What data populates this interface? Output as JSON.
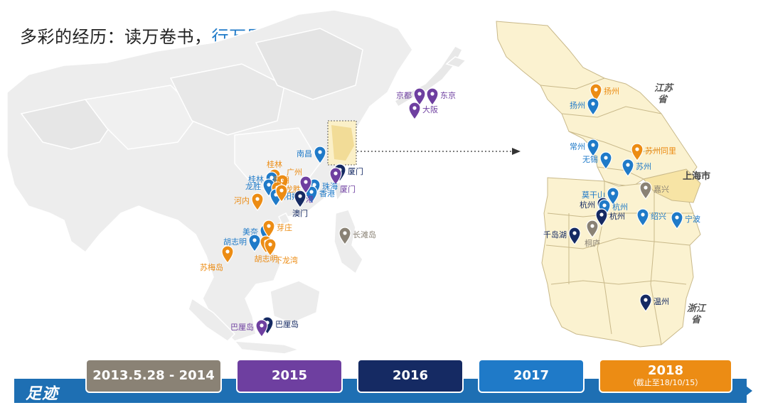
{
  "title": {
    "prefix": "多彩的经历：读万卷书，",
    "accent": "行万里路"
  },
  "colors": {
    "2013-2014": "#8a8275",
    "2015": "#6e3fa0",
    "2016": "#152a63",
    "2017": "#1f7ac8",
    "2018": "#ec8c14",
    "timeline": "#1e6fb3"
  },
  "timeline": {
    "label": "足迹",
    "periods": [
      {
        "label": "2013.5.28 - 2014",
        "sub": "",
        "color": "#8a8275"
      },
      {
        "label": "2015",
        "sub": "",
        "color": "#6e3fa0"
      },
      {
        "label": "2016",
        "sub": "",
        "color": "#152a63"
      },
      {
        "label": "2017",
        "sub": "",
        "color": "#1f7ac8"
      },
      {
        "label": "2018",
        "sub": "（截止至18/10/15）",
        "color": "#ec8c14"
      }
    ]
  },
  "map_left": {
    "pins": [
      {
        "name": "京都",
        "year": "2015"
      },
      {
        "name": "东京",
        "year": "2015"
      },
      {
        "name": "大阪",
        "year": "2015"
      },
      {
        "name": "南昌",
        "year": "2017"
      },
      {
        "name": "桂林",
        "year": "2018"
      },
      {
        "name": "桂林",
        "year": "2017"
      },
      {
        "name": "广州",
        "year": "2018"
      },
      {
        "name": "龙胜",
        "year": "2017"
      },
      {
        "name": "龙胜",
        "year": "2018"
      },
      {
        "name": "阳朔",
        "year": "2017"
      },
      {
        "name": "阳朔",
        "year": "2018"
      },
      {
        "name": "河内",
        "year": "2018"
      },
      {
        "name": "厦门",
        "year": "2016"
      },
      {
        "name": "厦门",
        "year": "2015"
      },
      {
        "name": "珠海",
        "year": "2017"
      },
      {
        "name": "香港",
        "year": "2017"
      },
      {
        "name": "香港",
        "year": "2015"
      },
      {
        "name": "澳门",
        "year": "2016"
      },
      {
        "name": "长滩岛",
        "year": "2013-2014"
      },
      {
        "name": "美奈",
        "year": "2017"
      },
      {
        "name": "芽庄",
        "year": "2018"
      },
      {
        "name": "胡志明",
        "year": "2017"
      },
      {
        "name": "胡志明",
        "year": "2018"
      },
      {
        "name": "下龙湾",
        "year": "2018"
      },
      {
        "name": "苏梅岛",
        "year": "2018"
      },
      {
        "name": "巴厘岛",
        "year": "2016"
      },
      {
        "name": "巴厘岛",
        "year": "2015"
      }
    ]
  },
  "map_right": {
    "region_labels": [
      "江苏省",
      "上海市",
      "浙江省"
    ],
    "pins": [
      {
        "name": "扬州",
        "year": "2018"
      },
      {
        "name": "扬州",
        "year": "2017"
      },
      {
        "name": "常州",
        "year": "2017"
      },
      {
        "name": "苏州同里",
        "year": "2018"
      },
      {
        "name": "无锡",
        "year": "2017"
      },
      {
        "name": "苏州",
        "year": "2017"
      },
      {
        "name": "嘉兴",
        "year": "2013-2014"
      },
      {
        "name": "莫干山",
        "year": "2017"
      },
      {
        "name": "杭州",
        "year": "2016"
      },
      {
        "name": "杭州",
        "year": "2017"
      },
      {
        "name": "杭州",
        "year": "2016"
      },
      {
        "name": "绍兴",
        "year": "2017"
      },
      {
        "name": "宁波",
        "year": "2017"
      },
      {
        "name": "千岛湖",
        "year": "2016"
      },
      {
        "name": "桐庐",
        "year": "2013-2014"
      },
      {
        "name": "温州",
        "year": "2016"
      }
    ]
  }
}
